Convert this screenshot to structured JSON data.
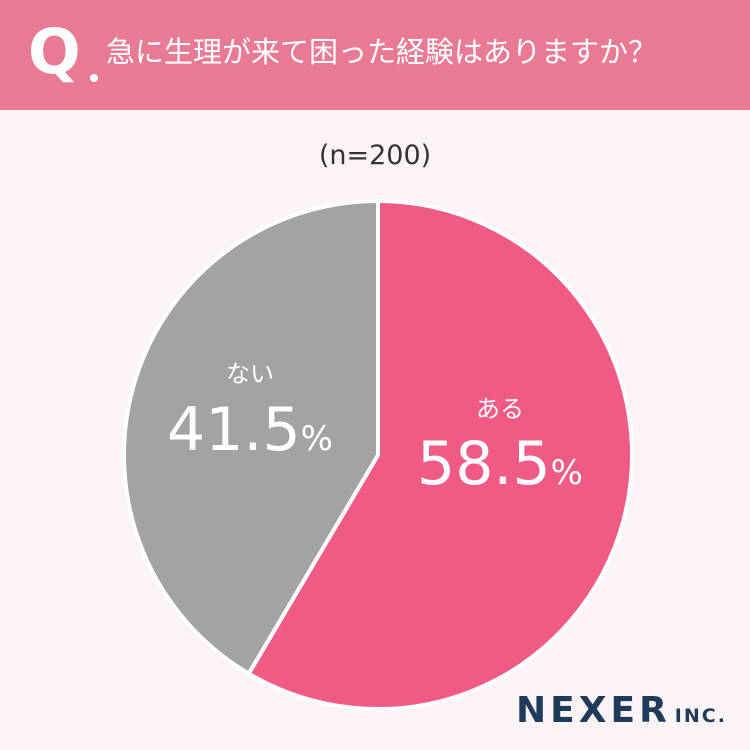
{
  "header": {
    "q_mark": "Q",
    "question": "急に生理が来て困った経験はありますか？"
  },
  "sample_size": "(n=200)",
  "chart_data": {
    "type": "pie",
    "slices": [
      {
        "label": "ある",
        "value": 58.5,
        "display": "58.5",
        "unit": "%",
        "color": "#ef5b84"
      },
      {
        "label": "ない",
        "value": 41.5,
        "display": "41.5",
        "unit": "%",
        "color": "#a3a3a3"
      }
    ],
    "start": "12 o'clock",
    "direction": "clockwise"
  },
  "logo": {
    "main": "NEXER",
    "sub": "INC."
  },
  "colors": {
    "header": "#e97a93",
    "background": "#fbf3f6",
    "label_text": "#ffffff"
  }
}
